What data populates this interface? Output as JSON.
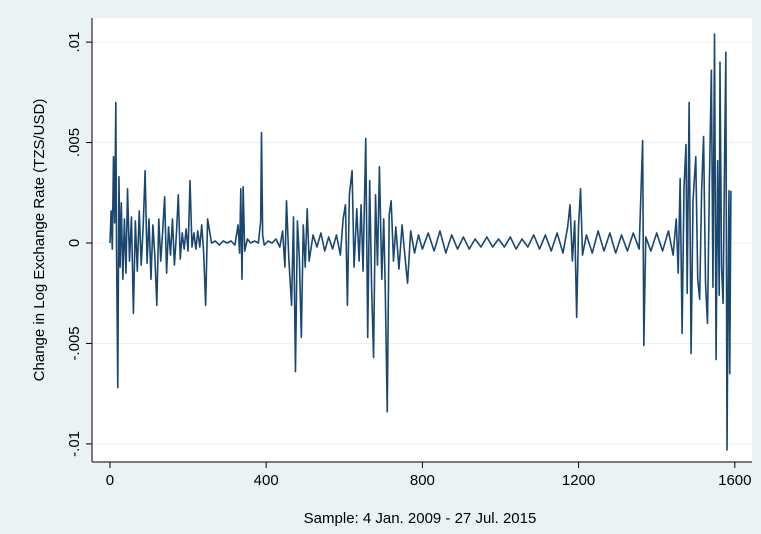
{
  "chart_data": {
    "type": "line",
    "x_label": "Sample: 4 Jan. 2009 - 27 Jul. 2015",
    "y_label": "Change in Log Exchange Rate (TZS/USD)",
    "color": "#1a476f",
    "grid": true,
    "xlim": [
      -46,
      1644
    ],
    "ylim": [
      -0.0109,
      0.0112
    ],
    "xticks": [
      0,
      400,
      800,
      1200,
      1600
    ],
    "yticks": [
      {
        "value": -0.01,
        "label": "-.01"
      },
      {
        "value": -0.005,
        "label": "-.005"
      },
      0,
      {
        "value": 0.005,
        "label": ".005"
      },
      {
        "value": 0.01,
        "label": ".01"
      }
    ],
    "x": [
      0,
      3,
      6,
      9,
      12,
      15,
      17,
      20,
      23,
      26,
      29,
      33,
      37,
      41,
      45,
      50,
      55,
      60,
      65,
      70,
      75,
      80,
      85,
      90,
      95,
      100,
      105,
      110,
      115,
      120,
      125,
      130,
      135,
      140,
      145,
      150,
      155,
      160,
      165,
      170,
      175,
      180,
      185,
      190,
      195,
      200,
      205,
      210,
      215,
      220,
      225,
      230,
      235,
      240,
      245,
      250,
      260,
      270,
      280,
      290,
      300,
      310,
      320,
      328,
      332,
      335,
      338,
      341,
      345,
      352,
      360,
      370,
      380,
      386,
      388,
      391,
      395,
      405,
      415,
      425,
      435,
      442,
      448,
      452,
      458,
      465,
      470,
      475,
      480,
      485,
      490,
      495,
      500,
      505,
      510,
      520,
      530,
      540,
      550,
      560,
      570,
      580,
      590,
      597,
      603,
      608,
      613,
      620,
      625,
      632,
      638,
      643,
      648,
      655,
      660,
      665,
      670,
      675,
      680,
      685,
      690,
      696,
      701,
      705,
      710,
      715,
      720,
      726,
      732,
      740,
      748,
      755,
      762,
      770,
      780,
      790,
      800,
      815,
      830,
      845,
      860,
      875,
      890,
      905,
      920,
      935,
      950,
      965,
      980,
      995,
      1010,
      1025,
      1040,
      1055,
      1070,
      1085,
      1100,
      1115,
      1130,
      1145,
      1160,
      1172,
      1178,
      1184,
      1190,
      1195,
      1200,
      1205,
      1210,
      1220,
      1235,
      1250,
      1265,
      1280,
      1295,
      1310,
      1325,
      1340,
      1355,
      1364,
      1367,
      1372,
      1385,
      1400,
      1415,
      1430,
      1442,
      1450,
      1455,
      1460,
      1465,
      1470,
      1475,
      1478,
      1483,
      1488,
      1493,
      1500,
      1505,
      1510,
      1515,
      1520,
      1525,
      1530,
      1535,
      1540,
      1544,
      1548,
      1552,
      1556,
      1560,
      1562,
      1566,
      1570,
      1574,
      1577,
      1580,
      1582,
      1585,
      1587,
      1590
    ],
    "values": [
      0,
      0.0016,
      -0.0003,
      0.0043,
      0.001,
      0.007,
      -0.0006,
      -0.0072,
      0.0033,
      -0.0012,
      0.002,
      -0.0018,
      0.0012,
      -0.0015,
      0.0027,
      -0.0009,
      0.0013,
      -0.0035,
      0.0011,
      -0.0014,
      0.0016,
      -0.0011,
      0.0008,
      0.0036,
      -0.001,
      0.0012,
      -0.0018,
      0.0009,
      -0.0007,
      -0.0031,
      0.0012,
      -0.0009,
      0.0006,
      0.0023,
      -0.0015,
      0.0008,
      -0.0006,
      0.0012,
      -0.0011,
      0.0004,
      0.0024,
      -0.0008,
      0.0005,
      -0.0003,
      0.0007,
      -0.0004,
      0.0031,
      -0.0002,
      0.0005,
      -0.0003,
      0.0006,
      -0.0002,
      0.0009,
      -0.0005,
      -0.0031,
      0.0012,
      0,
      0.0001,
      -0.0001,
      0.0001,
      0,
      0.0001,
      -0.0001,
      0.0009,
      -0.0005,
      0.0027,
      -0.0018,
      0.0028,
      -0.0004,
      0.0002,
      0,
      0.0001,
      0,
      0.0011,
      0.0055,
      0.0004,
      -0.0001,
      0.0001,
      0,
      0.0002,
      -0.0002,
      0.0006,
      -0.0012,
      0.0021,
      -0.0008,
      -0.0031,
      0.0013,
      -0.0064,
      0.0011,
      -0.0008,
      -0.0047,
      0.0009,
      -0.0012,
      0.0017,
      -0.0009,
      0.0004,
      -0.0002,
      0.0005,
      -0.0004,
      0.0003,
      -0.0003,
      0.0004,
      -0.0006,
      0.0012,
      0.0019,
      -0.0031,
      0.0024,
      0.0036,
      -0.0012,
      0.0017,
      -0.0009,
      0.0019,
      -0.0014,
      0.0052,
      -0.0047,
      0.0031,
      -0.0022,
      -0.0057,
      0.0024,
      -0.0011,
      0.0038,
      -0.0018,
      0.0012,
      -0.0024,
      -0.0084,
      0.0014,
      0.0021,
      -0.0009,
      0.0008,
      -0.0013,
      0.0009,
      -0.0006,
      -0.002,
      0.0006,
      -0.0005,
      0.0004,
      -0.0003,
      0.0005,
      -0.0004,
      0.0006,
      -0.0005,
      0.0004,
      -0.0003,
      0.0003,
      -0.0003,
      0.0002,
      -0.0002,
      0.0003,
      -0.0002,
      0.0002,
      -0.0002,
      0.0003,
      -0.0003,
      0.0002,
      -0.0002,
      0.0004,
      -0.0003,
      0.0004,
      -0.0004,
      0.0005,
      -0.0005,
      0.0008,
      0.0019,
      -0.0009,
      0.0011,
      -0.0037,
      0.0009,
      0.0027,
      -0.0006,
      0.0004,
      -0.0005,
      0.0006,
      -0.0004,
      0.0005,
      -0.0005,
      0.0004,
      -0.0004,
      0.0005,
      -0.0003,
      0.0051,
      -0.0051,
      0.0003,
      -0.0004,
      0.0005,
      -0.0004,
      0.0006,
      -0.0006,
      0.0012,
      -0.0015,
      0.0032,
      -0.0045,
      0.0028,
      0.0049,
      -0.0025,
      0.007,
      -0.0055,
      0.0021,
      0.0043,
      -0.0018,
      -0.0028,
      0.0026,
      0.0053,
      -0.002,
      -0.004,
      0.0031,
      0.0086,
      -0.0022,
      0.0104,
      -0.0058,
      0.0041,
      -0.0026,
      0.009,
      -0.0012,
      -0.003,
      0.0045,
      0.0095,
      -0.0103,
      -0.0044,
      0.0026,
      -0.0065,
      0.0026
    ]
  }
}
